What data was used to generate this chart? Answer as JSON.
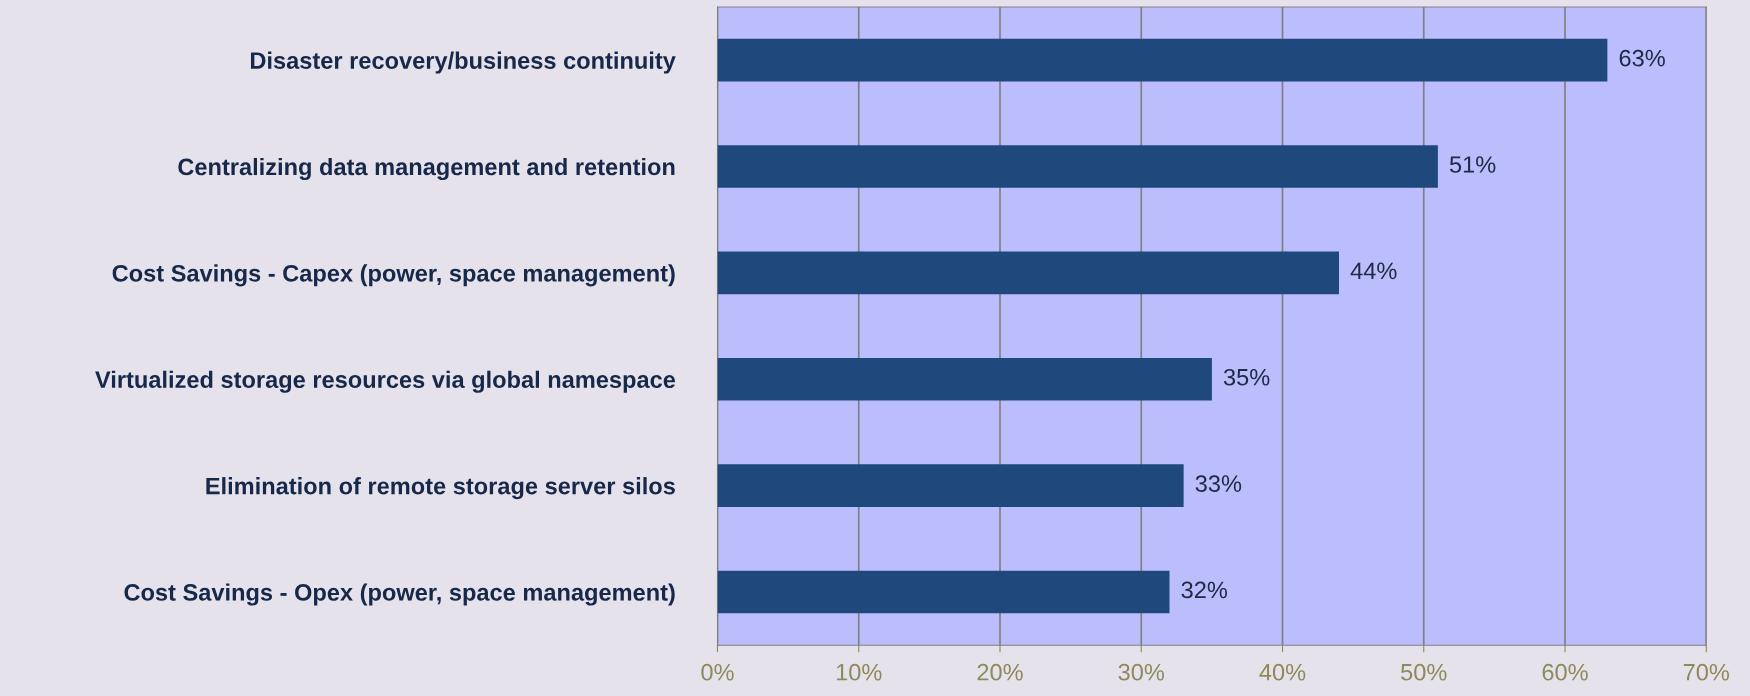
{
  "chart_data": {
    "type": "bar",
    "orientation": "horizontal",
    "categories": [
      "Disaster recovery/business continuity",
      "Centralizing data management and retention",
      "Cost Savings - Capex (power, space management)",
      "Virtualized storage resources via global namespace",
      "Elimination of remote storage server silos",
      "Cost Savings - Opex (power, space management)"
    ],
    "values": [
      63,
      51,
      44,
      35,
      33,
      32
    ],
    "value_labels": [
      "63%",
      "51%",
      "44%",
      "35%",
      "33%",
      "32%"
    ],
    "color": "#1f497d",
    "xlim": [
      0,
      70
    ],
    "xticks": [
      {
        "value": 0,
        "label": "0%"
      },
      {
        "value": 10,
        "label": "10%"
      },
      {
        "value": 20,
        "label": "20%"
      },
      {
        "value": 30,
        "label": "30%"
      },
      {
        "value": 40,
        "label": "40%"
      },
      {
        "value": 50,
        "label": "50%"
      },
      {
        "value": 60,
        "label": "60%"
      },
      {
        "value": 70,
        "label": "70%"
      }
    ],
    "grid": "x",
    "legend": false
  }
}
